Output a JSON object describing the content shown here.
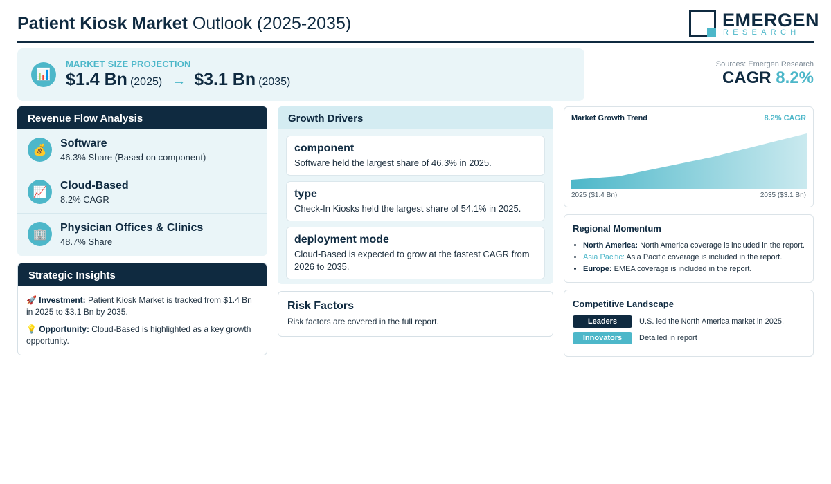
{
  "header": {
    "title_bold": "Patient Kiosk Market",
    "title_rest": " Outlook (2025-2035)",
    "logo_name": "EMERGEN",
    "logo_sub": "RESEARCH"
  },
  "projection": {
    "label": "MARKET SIZE PROJECTION",
    "start_value": "$1.4 Bn",
    "start_year": "(2025)",
    "arrow": "→",
    "end_value": "$3.1 Bn",
    "end_year": "(2035)",
    "icon": "bar-chart-icon"
  },
  "cagr": {
    "sources": "Sources: Emergen Research",
    "label": "CAGR ",
    "value": "8.2%"
  },
  "revenue_flow": {
    "title": "Revenue Flow Analysis",
    "items": [
      {
        "icon": "money-bag-icon",
        "glyph": "💰",
        "name": "Software",
        "sub": "46.3% Share (Based on component)"
      },
      {
        "icon": "trend-chart-icon",
        "glyph": "📈",
        "name": "Cloud-Based",
        "sub": "8.2% CAGR"
      },
      {
        "icon": "building-icon",
        "glyph": "🏢",
        "name": "Physician Offices & Clinics",
        "sub": "48.7% Share"
      }
    ]
  },
  "strategic": {
    "title": "Strategic Insights",
    "investment_label": "Investment:",
    "investment_text": " Patient Kiosk Market is tracked from $1.4 Bn in 2025 to $3.1 Bn by 2035.",
    "opportunity_label": "Opportunity:",
    "opportunity_text": " Cloud-Based is highlighted as a key growth opportunity."
  },
  "drivers": {
    "title": "Growth Drivers",
    "cards": [
      {
        "title": "component",
        "text": "Software held the largest share of 46.3% in 2025."
      },
      {
        "title": "type",
        "text": "Check-In Kiosks held the largest share of 54.1% in 2025."
      },
      {
        "title": "deployment mode",
        "text": "Cloud-Based is expected to grow at the fastest CAGR from 2026 to 2035."
      }
    ]
  },
  "risk": {
    "title": "Risk Factors",
    "text": "Risk factors are covered in the full report."
  },
  "trend": {
    "title": "Market Growth Trend",
    "cagr_label": "8.2% CAGR",
    "start_label": "2025 ($1.4 Bn)",
    "end_label": "2035 ($3.1 Bn)",
    "fill_color": "#4db7c9"
  },
  "region": {
    "title": "Regional Momentum",
    "items": [
      {
        "name": "North America:",
        "text": " North America coverage is included in the report."
      },
      {
        "name": "Asia Pacific:",
        "text": " Asia Pacific coverage is included in the report."
      },
      {
        "name": "Europe:",
        "text": " EMEA coverage is included in the report."
      }
    ]
  },
  "competitive": {
    "title": "Competitive Landscape",
    "rows": [
      {
        "badge": "Leaders",
        "text": "U.S. led the North America market in 2025."
      },
      {
        "badge": "Innovators",
        "text": "Detailed in report"
      }
    ]
  },
  "colors": {
    "navy": "#0f2a40",
    "teal": "#4db7c9",
    "panel_bg": "#eaf5f8"
  }
}
